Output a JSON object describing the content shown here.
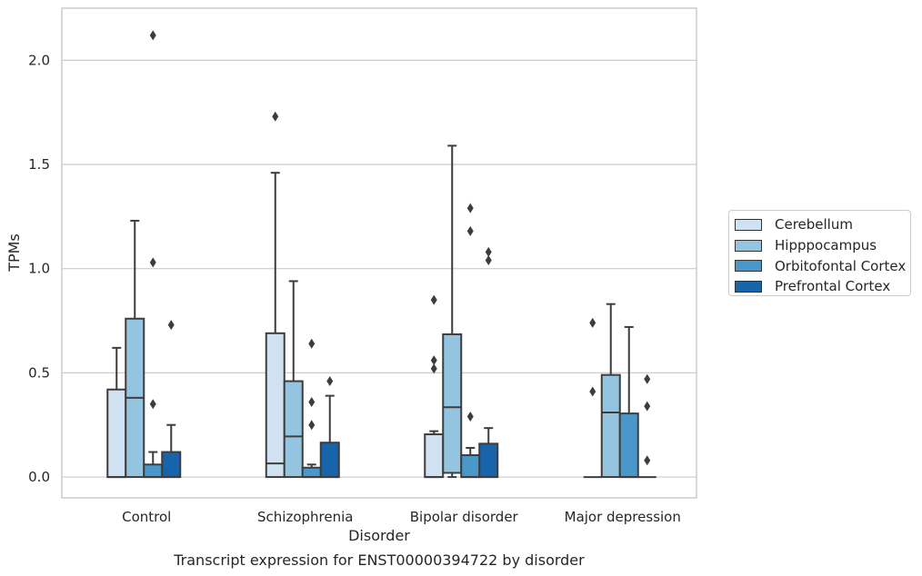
{
  "chart_data": {
    "type": "box",
    "title": "Transcript expression for ENST00000394722 by disorder",
    "xlabel": "Disorder",
    "ylabel": "TPMs",
    "ylim": [
      -0.1,
      2.25
    ],
    "yticks": [
      0.0,
      0.5,
      1.0,
      1.5,
      2.0
    ],
    "ytick_labels": [
      "0.0",
      "0.5",
      "1.0",
      "1.5",
      "2.0"
    ],
    "grid": "horizontal",
    "legend_placement": "right",
    "categories": [
      "Control",
      "Schizophrenia",
      "Bipolar disorder",
      "Major depression"
    ],
    "series": [
      {
        "name": "Cerebellum",
        "color": "#d0e1f2",
        "boxes": [
          {
            "q1": 0.0,
            "median": 0.0,
            "q3": 0.42,
            "whisker_low": 0.0,
            "whisker_high": 0.62,
            "outliers": []
          },
          {
            "q1": 0.0,
            "median": 0.065,
            "q3": 0.69,
            "whisker_low": 0.0,
            "whisker_high": 1.46,
            "outliers": [
              1.73
            ]
          },
          {
            "q1": 0.0,
            "median": 0.0,
            "q3": 0.205,
            "whisker_low": 0.0,
            "whisker_high": 0.22,
            "outliers": [
              0.85,
              0.56,
              0.52
            ]
          },
          {
            "q1": 0.0,
            "median": 0.0,
            "q3": 0.0,
            "whisker_low": 0.0,
            "whisker_high": 0.0,
            "outliers": [
              0.74,
              0.41
            ]
          }
        ]
      },
      {
        "name": "Hipppocampus",
        "color": "#94c4df",
        "boxes": [
          {
            "q1": 0.0,
            "median": 0.38,
            "q3": 0.76,
            "whisker_low": 0.0,
            "whisker_high": 1.23,
            "outliers": []
          },
          {
            "q1": 0.0,
            "median": 0.195,
            "q3": 0.46,
            "whisker_low": 0.0,
            "whisker_high": 0.94,
            "outliers": []
          },
          {
            "q1": 0.02,
            "median": 0.335,
            "q3": 0.685,
            "whisker_low": 0.0,
            "whisker_high": 1.59,
            "outliers": []
          },
          {
            "q1": 0.0,
            "median": 0.31,
            "q3": 0.49,
            "whisker_low": 0.0,
            "whisker_high": 0.83,
            "outliers": []
          }
        ]
      },
      {
        "name": "Orbitofontal Cortex",
        "color": "#4a98c9",
        "boxes": [
          {
            "q1": 0.0,
            "median": 0.0,
            "q3": 0.06,
            "whisker_low": 0.0,
            "whisker_high": 0.12,
            "outliers": [
              2.12,
              1.03,
              0.35
            ]
          },
          {
            "q1": 0.0,
            "median": 0.0,
            "q3": 0.045,
            "whisker_low": 0.0,
            "whisker_high": 0.06,
            "outliers": [
              0.64,
              0.36,
              0.25
            ]
          },
          {
            "q1": 0.0,
            "median": 0.0,
            "q3": 0.105,
            "whisker_low": 0.0,
            "whisker_high": 0.14,
            "outliers": [
              1.29,
              1.18,
              0.29
            ]
          },
          {
            "q1": 0.0,
            "median": 0.0,
            "q3": 0.305,
            "whisker_low": 0.0,
            "whisker_high": 0.72,
            "outliers": []
          }
        ]
      },
      {
        "name": "Prefrontal Cortex",
        "color": "#1764ab",
        "boxes": [
          {
            "q1": 0.0,
            "median": 0.0,
            "q3": 0.12,
            "whisker_low": 0.0,
            "whisker_high": 0.25,
            "outliers": [
              0.73
            ]
          },
          {
            "q1": 0.0,
            "median": 0.0,
            "q3": 0.165,
            "whisker_low": 0.0,
            "whisker_high": 0.39,
            "outliers": [
              0.46
            ]
          },
          {
            "q1": 0.0,
            "median": 0.0,
            "q3": 0.16,
            "whisker_low": 0.0,
            "whisker_high": 0.235,
            "outliers": [
              1.08,
              1.04
            ]
          },
          {
            "q1": 0.0,
            "median": 0.0,
            "q3": 0.0,
            "whisker_low": 0.0,
            "whisker_high": 0.0,
            "outliers": [
              0.47,
              0.34,
              0.08
            ]
          }
        ]
      }
    ]
  },
  "colors": {
    "grid": "#cccccc",
    "frame": "#cccccc",
    "box_edge": "#3d3d3d",
    "outlier": "#3d3d3d"
  }
}
